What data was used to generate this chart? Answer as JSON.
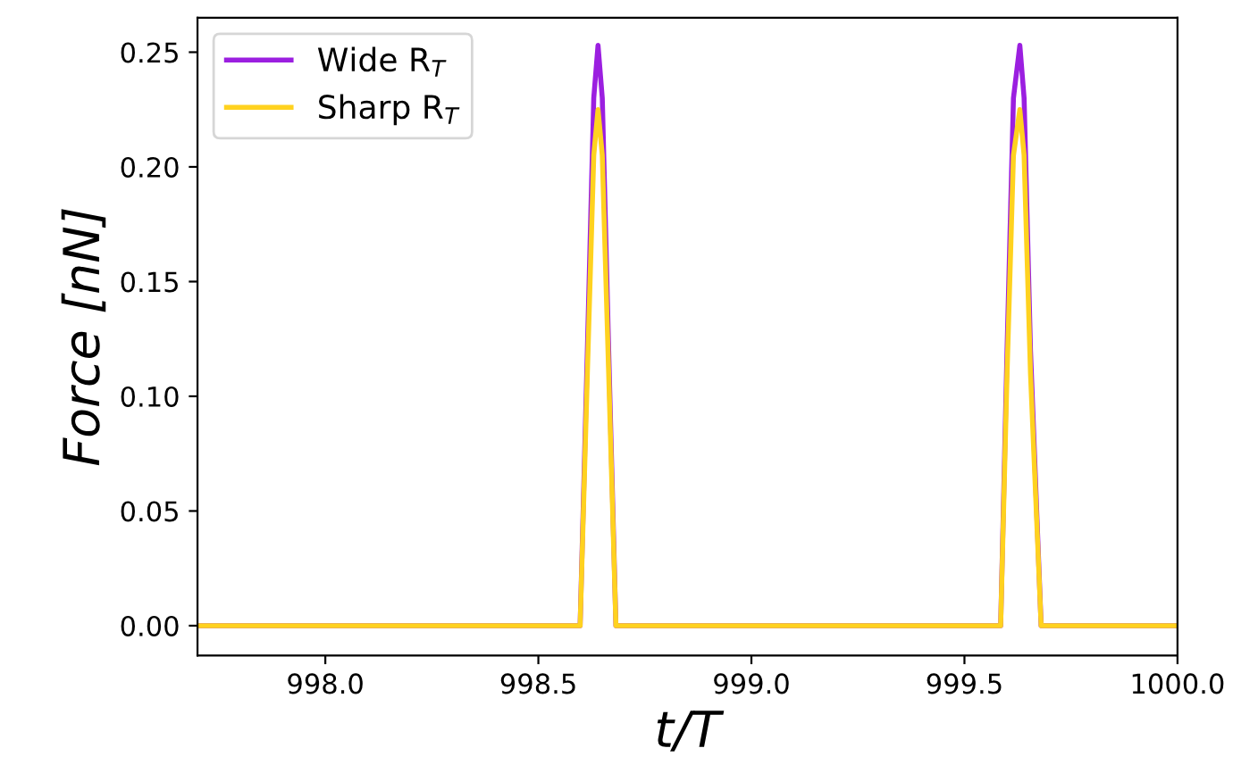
{
  "chart_data": {
    "type": "line",
    "xlabel": "t/T",
    "ylabel": "Force [nN]",
    "x": [
      997.7,
      998.598,
      998.615,
      998.63,
      998.64,
      998.65,
      998.665,
      998.682,
      999.585,
      999.6,
      999.615,
      999.63,
      999.64,
      999.655,
      999.68,
      1000.0
    ],
    "series": [
      {
        "name": "Wide R$_{T}$",
        "color": "#9b1fe0",
        "values": [
          0,
          0,
          0.12,
          0.23,
          0.253,
          0.23,
          0.12,
          0,
          0,
          0.12,
          0.23,
          0.253,
          0.23,
          0.12,
          0,
          0
        ]
      },
      {
        "name": "Sharp R$_{T}$",
        "color": "#ffd21f",
        "values": [
          0,
          0,
          0.11,
          0.205,
          0.225,
          0.205,
          0.11,
          0,
          0,
          0.11,
          0.205,
          0.225,
          0.205,
          0.11,
          0,
          0
        ]
      }
    ],
    "xlim": [
      997.7,
      1000.0
    ],
    "xticks": [
      {
        "value": 998.0,
        "label": "998.0"
      },
      {
        "value": 998.5,
        "label": "998.5"
      },
      {
        "value": 999.0,
        "label": "999.0"
      },
      {
        "value": 999.5,
        "label": "999.5"
      },
      {
        "value": 1000.0,
        "label": "1000.0"
      }
    ],
    "ylim": [
      -0.013,
      0.265
    ],
    "yticks": [
      {
        "value": 0,
        "label": "0.00"
      },
      {
        "value": 0.05,
        "label": "0.05"
      },
      {
        "value": 0.1,
        "label": "0.10"
      },
      {
        "value": 0.15,
        "label": "0.15"
      },
      {
        "value": 0.2,
        "label": "0.20"
      },
      {
        "value": 0.25,
        "label": "0.25"
      }
    ],
    "legend": "top left",
    "grid": false
  }
}
